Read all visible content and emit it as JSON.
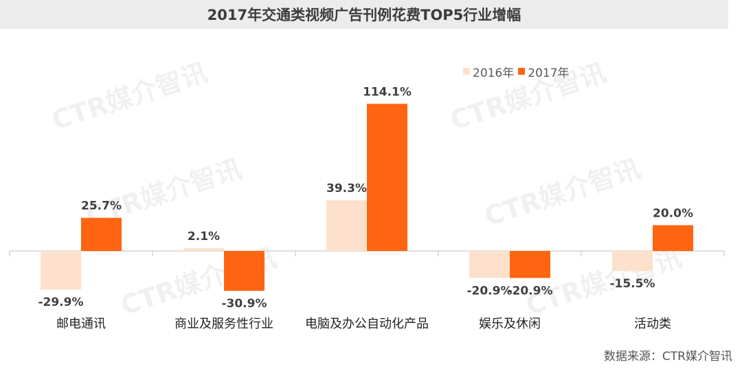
{
  "watermark_text": "CTR媒介智讯",
  "source_text": "数据来源：CTR媒介智讯",
  "chart_data": {
    "type": "bar",
    "title": "2017年交通类视频广告刊例花费TOP5行业增幅",
    "categories": [
      "邮电通讯",
      "商业及服务性行业",
      "电脑及办公自动化产品",
      "娱乐及休闲",
      "活动类"
    ],
    "series": [
      {
        "name": "2016年",
        "color": "#fde1cc",
        "values": [
          -29.9,
          2.1,
          39.3,
          -20.9,
          -15.5
        ],
        "labels": [
          "-29.9%",
          "2.1%",
          "39.3%",
          "-20.9%",
          "-15.5%"
        ]
      },
      {
        "name": "2017年",
        "color": "#ff6510",
        "values": [
          25.7,
          -30.9,
          114.1,
          -20.9,
          20.0
        ],
        "labels": [
          "25.7%",
          "-30.9%",
          "114.1%",
          "-20.9%",
          "20.0%"
        ]
      }
    ],
    "unit": "%",
    "legend_position": "top-right",
    "grid": false
  }
}
